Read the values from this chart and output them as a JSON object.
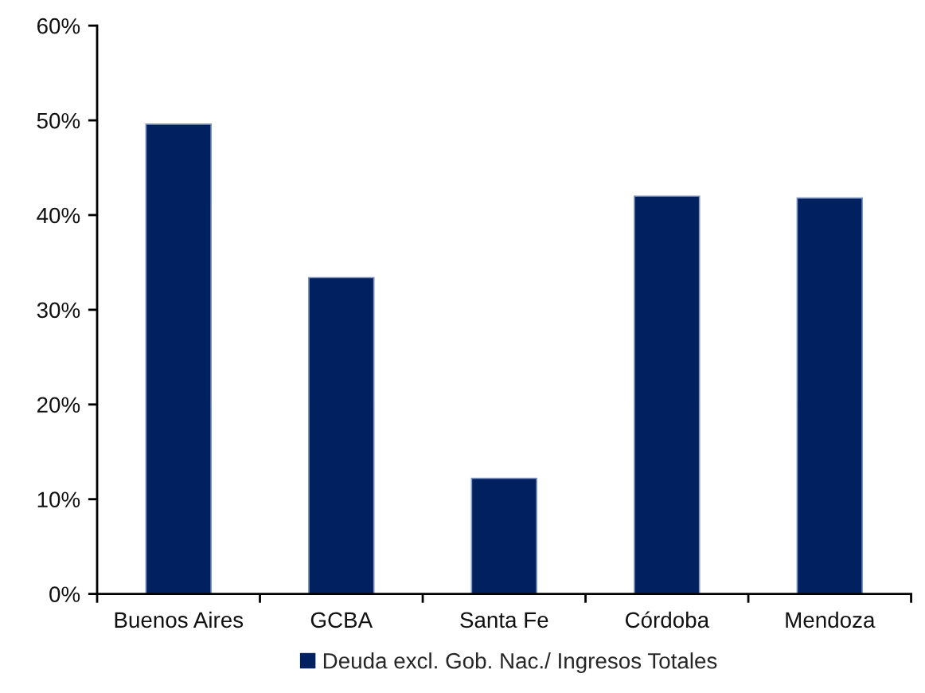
{
  "chart_data": {
    "type": "bar",
    "categories": [
      "Buenos Aires",
      "GCBA",
      "Santa Fe",
      "Córdoba",
      "Mendoza"
    ],
    "series": [
      {
        "name": "Deuda excl. Gob. Nac./ Ingresos Totales",
        "color": "#002060",
        "values": [
          49.6,
          33.4,
          12.2,
          42.0,
          41.8
        ]
      }
    ],
    "ylim": [
      0,
      60
    ],
    "yticks": [
      {
        "value": 0,
        "label": "0%"
      },
      {
        "value": 10,
        "label": "10%"
      },
      {
        "value": 20,
        "label": "20%"
      },
      {
        "value": 30,
        "label": "30%"
      },
      {
        "value": 40,
        "label": "40%"
      },
      {
        "value": 50,
        "label": "50%"
      },
      {
        "value": 60,
        "label": "60%"
      }
    ],
    "legend": "bottom"
  }
}
